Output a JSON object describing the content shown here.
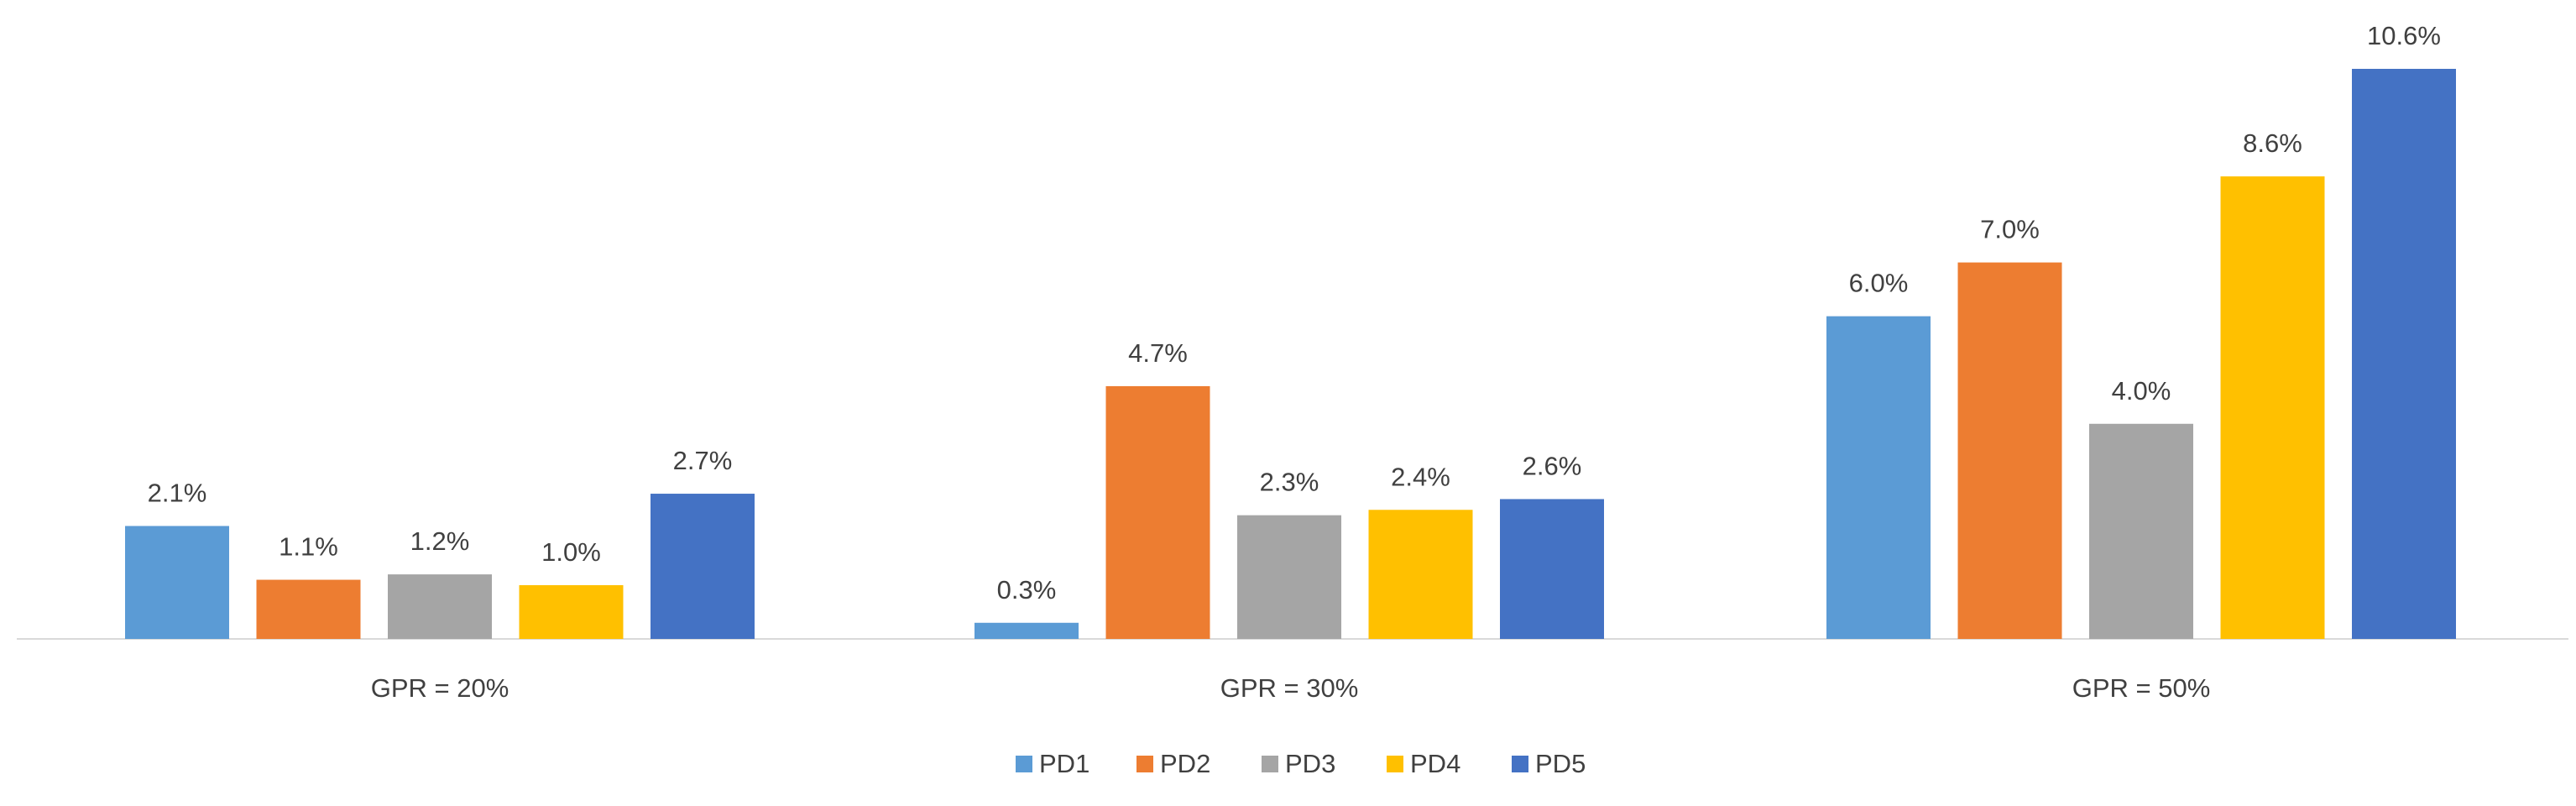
{
  "chart_data": {
    "type": "bar",
    "title": "",
    "xlabel": "",
    "ylabel": "",
    "categories": [
      "GPR = 20%",
      "GPR = 30%",
      "GPR = 50%"
    ],
    "series": [
      {
        "name": "PD1",
        "color": "#5B9BD5",
        "values": [
          2.1,
          0.3,
          6.0
        ],
        "labels": [
          "2.1%",
          "0.3%",
          "6.0%"
        ]
      },
      {
        "name": "PD2",
        "color": "#ED7D31",
        "values": [
          1.1,
          4.7,
          7.0
        ],
        "labels": [
          "1.1%",
          "4.7%",
          "7.0%"
        ]
      },
      {
        "name": "PD3",
        "color": "#A5A5A5",
        "values": [
          1.2,
          2.3,
          4.0
        ],
        "labels": [
          "1.2%",
          "2.3%",
          "4.0%"
        ]
      },
      {
        "name": "PD4",
        "color": "#FFC000",
        "values": [
          1.0,
          2.4,
          8.6
        ],
        "labels": [
          "1.0%",
          "2.4%",
          "8.6%"
        ]
      },
      {
        "name": "PD5",
        "color": "#4472C4",
        "values": [
          2.7,
          2.6,
          10.6
        ],
        "labels": [
          "2.7%",
          "2.6%",
          "10.6%"
        ]
      }
    ],
    "ylim": [
      0,
      10.6
    ],
    "y_axis_visible": false,
    "grid": false,
    "legend_position": "bottom",
    "axis_line_color": "#D9D9D9"
  }
}
